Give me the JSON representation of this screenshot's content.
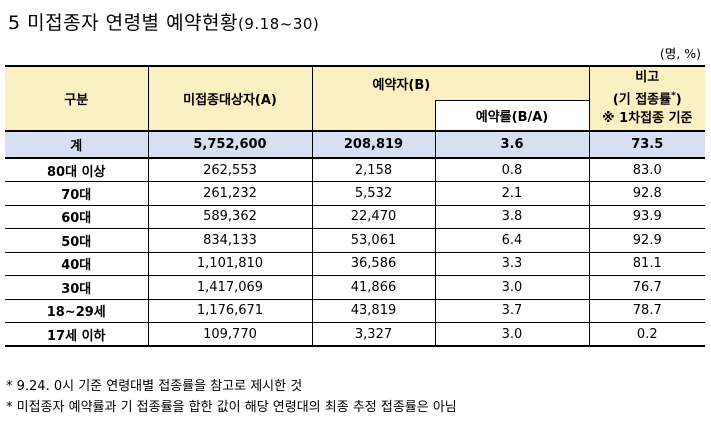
{
  "title": {
    "main": "5 미접종자 연령별 예약현황",
    "period": "(9.18~30)"
  },
  "unit": "(명, %)",
  "table": {
    "headers": {
      "group": "구분",
      "unvaccinated": "미접종대상자(A)",
      "reserved": "예약자(B)",
      "rate": "예약률(B/A)",
      "note_title": "비고",
      "note_line1": "(기 접종률",
      "note_star": "*",
      "note_close": ")",
      "note_line2": "※ 1차접종 기준"
    },
    "total": {
      "label": "계",
      "unvaccinated": "5,752,600",
      "reserved": "208,819",
      "rate": "3.6",
      "note": "73.5"
    },
    "rows": [
      {
        "age": "80대 이상",
        "unvaccinated": "262,553",
        "reserved": "2,158",
        "rate": "0.8",
        "note": "83.0"
      },
      {
        "age": "70대",
        "unvaccinated": "261,232",
        "reserved": "5,532",
        "rate": "2.1",
        "note": "92.8"
      },
      {
        "age": "60대",
        "unvaccinated": "589,362",
        "reserved": "22,470",
        "rate": "3.8",
        "note": "93.9"
      },
      {
        "age": "50대",
        "unvaccinated": "834,133",
        "reserved": "53,061",
        "rate": "6.4",
        "note": "92.9"
      },
      {
        "age": "40대",
        "unvaccinated": "1,101,810",
        "reserved": "36,586",
        "rate": "3.3",
        "note": "81.1"
      },
      {
        "age": "30대",
        "unvaccinated": "1,417,069",
        "reserved": "41,866",
        "rate": "3.0",
        "note": "76.7"
      },
      {
        "age": "18~29세",
        "unvaccinated": "1,176,671",
        "reserved": "43,819",
        "rate": "3.7",
        "note": "78.7"
      },
      {
        "age": "17세 이하",
        "unvaccinated": "109,770",
        "reserved": "3,327",
        "rate": "3.0",
        "note": "0.2"
      }
    ]
  },
  "footnotes": [
    "* 9.24. 0시 기준 연령대별 접종률을 참고로 제시한 것",
    "* 미접종자 예약률과 기 접종률을 합한 값이 해당 연령대의 최종 추정 접종률은 아님"
  ]
}
